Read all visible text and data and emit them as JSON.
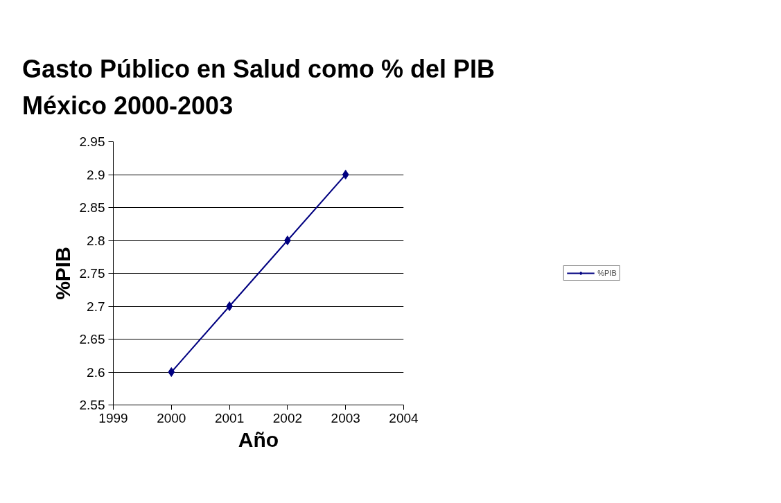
{
  "chart_data": {
    "type": "line",
    "title": "Gasto Público en Salud como % del PIB\nMéxico 2000-2003",
    "xlabel": "Año",
    "ylabel": "%PIB",
    "x": [
      2000,
      2001,
      2002,
      2003
    ],
    "series": [
      {
        "name": "%PIB",
        "color": "#000080",
        "values": [
          2.6,
          2.7,
          2.8,
          2.9
        ]
      }
    ],
    "xlim": [
      1999,
      2004
    ],
    "xticks": [
      1999,
      2000,
      2001,
      2002,
      2003,
      2004
    ],
    "ylim": [
      2.55,
      2.95
    ],
    "yticks": [
      2.55,
      2.6,
      2.65,
      2.7,
      2.75,
      2.8,
      2.85,
      2.9,
      2.95
    ],
    "grid": "y",
    "legend": "right",
    "marker": "diamond",
    "line_style": "solid"
  }
}
